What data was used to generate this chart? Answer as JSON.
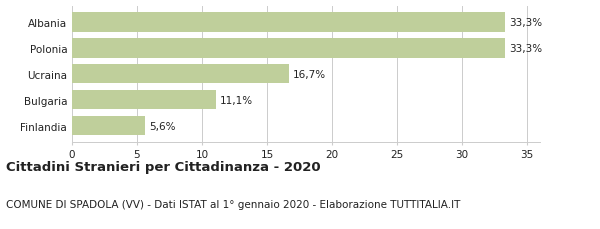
{
  "categories": [
    "Finlandia",
    "Bulgaria",
    "Ucraina",
    "Polonia",
    "Albania"
  ],
  "values": [
    5.6,
    11.1,
    16.7,
    33.3,
    33.3
  ],
  "labels": [
    "5,6%",
    "11,1%",
    "16,7%",
    "33,3%",
    "33,3%"
  ],
  "bar_color": "#bfcf9b",
  "xlim": [
    0,
    36
  ],
  "xticks": [
    0,
    5,
    10,
    15,
    20,
    25,
    30,
    35
  ],
  "title": "Cittadini Stranieri per Cittadinanza - 2020",
  "subtitle": "COMUNE DI SPADOLA (VV) - Dati ISTAT al 1° gennaio 2020 - Elaborazione TUTTITALIA.IT",
  "title_fontsize": 9.5,
  "subtitle_fontsize": 7.5,
  "label_fontsize": 7.5,
  "tick_fontsize": 7.5,
  "ylabel_fontsize": 7.5,
  "background_color": "#ffffff",
  "grid_color": "#cccccc",
  "text_color": "#222222",
  "bar_height": 0.75
}
